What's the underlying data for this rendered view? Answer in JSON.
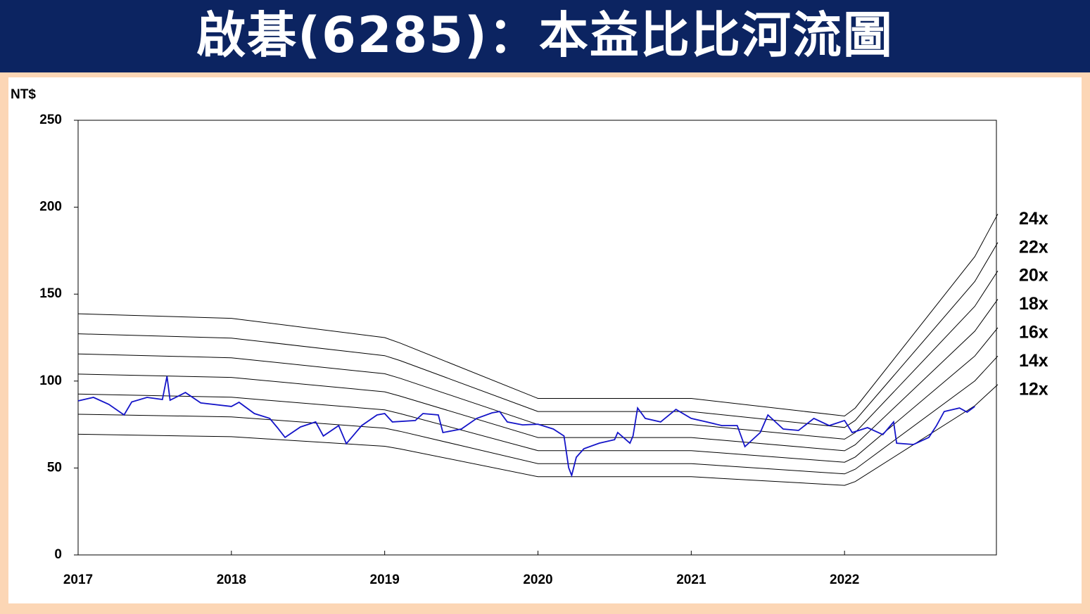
{
  "chart_data": {
    "type": "line",
    "title": "啟碁(6285)：本益比比河流圖",
    "ylabel": "NT$",
    "xlim": [
      2017,
      2023
    ],
    "xticks": [
      2017,
      2018,
      2019,
      2020,
      2021,
      2022
    ],
    "ylim": [
      0,
      250
    ],
    "yticks": [
      0,
      50,
      100,
      150,
      200,
      250
    ],
    "series": [
      {
        "name": "24x",
        "color": "#000000",
        "x": [
          2017,
          2018,
          2019,
          2019.1,
          2020,
          2021,
          2022,
          2022.07,
          2022.85,
          2023
        ],
        "values": [
          138.7,
          136.1,
          125.0,
          121.9,
          90.0,
          90.0,
          79.9,
          84.5,
          171.6,
          196.1
        ]
      },
      {
        "name": "22x",
        "color": "#000000",
        "x": [
          2017,
          2018,
          2019,
          2019.1,
          2020,
          2021,
          2022,
          2022.07,
          2022.85,
          2023
        ],
        "values": [
          127.2,
          124.7,
          114.6,
          111.8,
          82.5,
          82.5,
          73.3,
          77.4,
          157.3,
          179.7
        ]
      },
      {
        "name": "20x",
        "color": "#000000",
        "x": [
          2017,
          2018,
          2019,
          2019.1,
          2020,
          2021,
          2022,
          2022.07,
          2022.85,
          2023
        ],
        "values": [
          115.6,
          113.4,
          104.2,
          101.6,
          75.0,
          75.0,
          66.6,
          70.4,
          143.0,
          163.4
        ]
      },
      {
        "name": "18x",
        "color": "#000000",
        "x": [
          2017,
          2018,
          2019,
          2019.1,
          2020,
          2021,
          2022,
          2022.07,
          2022.85,
          2023
        ],
        "values": [
          104.0,
          102.1,
          93.8,
          91.4,
          67.5,
          67.5,
          59.9,
          63.4,
          128.7,
          147.1
        ]
      },
      {
        "name": "16x",
        "color": "#000000",
        "x": [
          2017,
          2018,
          2019,
          2019.1,
          2020,
          2021,
          2022,
          2022.07,
          2022.85,
          2023
        ],
        "values": [
          92.5,
          90.7,
          83.4,
          81.3,
          60.0,
          60.0,
          53.3,
          56.3,
          114.4,
          130.7
        ]
      },
      {
        "name": "14x",
        "color": "#000000",
        "x": [
          2017,
          2018,
          2019,
          2019.1,
          2020,
          2021,
          2022,
          2022.07,
          2022.85,
          2023
        ],
        "values": [
          80.9,
          79.4,
          72.9,
          71.1,
          52.5,
          52.5,
          46.6,
          49.3,
          100.1,
          114.4
        ]
      },
      {
        "name": "12x",
        "color": "#000000",
        "x": [
          2017,
          2018,
          2019,
          2019.1,
          2020,
          2021,
          2022,
          2022.07,
          2022.85,
          2023
        ],
        "values": [
          69.4,
          68.0,
          62.5,
          61.0,
          45.0,
          45.0,
          40.0,
          42.2,
          85.8,
          98.0
        ]
      },
      {
        "color": "#1414c8",
        "x": [
          2017.0,
          2017.1,
          2017.2,
          2017.3,
          2017.35,
          2017.45,
          2017.55,
          2017.58,
          2017.6,
          2017.7,
          2017.8,
          2018.0,
          2018.05,
          2018.15,
          2018.25,
          2018.3,
          2018.35,
          2018.45,
          2018.55,
          2018.6,
          2018.7,
          2018.75,
          2018.85,
          2018.95,
          2019.0,
          2019.05,
          2019.2,
          2019.25,
          2019.35,
          2019.38,
          2019.5,
          2019.6,
          2019.7,
          2019.75,
          2019.8,
          2019.9,
          2020.0,
          2020.1,
          2020.17,
          2020.2,
          2020.22,
          2020.25,
          2020.3,
          2020.4,
          2020.5,
          2020.52,
          2020.6,
          2020.62,
          2020.65,
          2020.7,
          2020.8,
          2020.9,
          2021.0,
          2021.1,
          2021.2,
          2021.3,
          2021.35,
          2021.45,
          2021.5,
          2021.6,
          2021.7,
          2021.8,
          2021.9,
          2022.0,
          2022.05,
          2022.15,
          2022.25,
          2022.32,
          2022.34,
          2022.45,
          2022.55,
          2022.6,
          2022.65,
          2022.75,
          2022.8,
          2022.85
        ],
        "values": [
          88.6,
          90.6,
          86.6,
          80.5,
          88.0,
          90.6,
          89.4,
          102.8,
          89.0,
          93.4,
          87.4,
          85.4,
          87.8,
          81.3,
          78.5,
          73.2,
          67.6,
          73.6,
          76.5,
          68.4,
          74.4,
          64.0,
          74.4,
          80.5,
          81.3,
          76.5,
          77.3,
          81.3,
          80.5,
          70.4,
          72.4,
          78.5,
          81.7,
          82.5,
          76.5,
          74.8,
          75.2,
          72.4,
          68.4,
          50.2,
          45.7,
          56.2,
          61.1,
          64.3,
          66.3,
          70.4,
          64.3,
          68.4,
          84.5,
          78.5,
          76.5,
          83.7,
          78.5,
          76.5,
          74.4,
          74.4,
          62.3,
          70.4,
          80.5,
          72.4,
          71.6,
          78.5,
          74.4,
          77.3,
          70.4,
          73.2,
          69.2,
          76.5,
          64.3,
          63.5,
          67.6,
          74.4,
          82.5,
          84.5,
          82.1,
          85.4
        ]
      }
    ]
  }
}
